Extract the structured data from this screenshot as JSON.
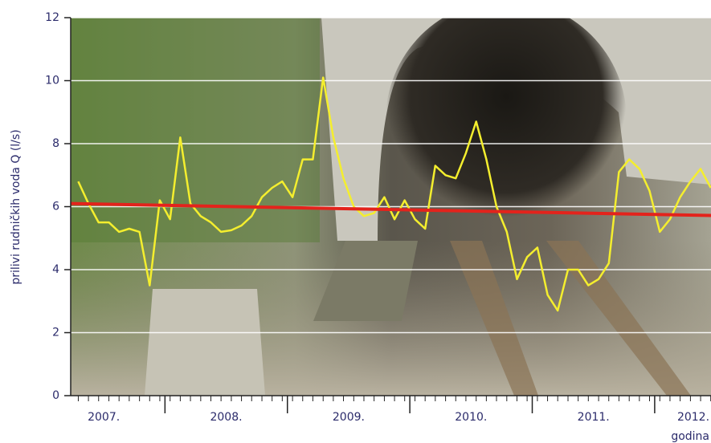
{
  "chart_data": {
    "type": "line",
    "y_label": "prilivi rudničkih voda Q (l/s)",
    "x_label": "godina",
    "xlim": [
      2007.23,
      2012.46
    ],
    "ylim": [
      0,
      12
    ],
    "yticks": [
      0,
      2,
      4,
      6,
      8,
      10,
      12
    ],
    "xticks": [
      {
        "value": 2007.5,
        "label": "2007."
      },
      {
        "value": 2008.5,
        "label": "2008."
      },
      {
        "value": 2009.5,
        "label": "2009."
      },
      {
        "value": 2010.5,
        "label": "2010."
      },
      {
        "value": 2011.5,
        "label": "2011."
      },
      {
        "value": 2012.5,
        "label": "2012."
      }
    ],
    "grid": true,
    "series": [
      {
        "color": "#f4ee2e",
        "x": [
          2007.292,
          2007.375,
          2007.458,
          2007.542,
          2007.625,
          2007.708,
          2007.792,
          2007.875,
          2007.958,
          2008.042,
          2008.125,
          2008.208,
          2008.292,
          2008.375,
          2008.458,
          2008.542,
          2008.625,
          2008.708,
          2008.792,
          2008.875,
          2008.958,
          2009.042,
          2009.125,
          2009.208,
          2009.292,
          2009.375,
          2009.458,
          2009.542,
          2009.625,
          2009.708,
          2009.792,
          2009.875,
          2009.958,
          2010.042,
          2010.125,
          2010.208,
          2010.292,
          2010.375,
          2010.458,
          2010.542,
          2010.625,
          2010.708,
          2010.792,
          2010.875,
          2010.958,
          2011.042,
          2011.125,
          2011.208,
          2011.292,
          2011.375,
          2011.458,
          2011.542,
          2011.625,
          2011.708,
          2011.792,
          2011.875,
          2011.958,
          2012.042,
          2012.125,
          2012.208,
          2012.292,
          2012.375,
          2012.458
        ],
        "values": [
          6.8,
          6.1,
          5.5,
          5.5,
          5.2,
          5.3,
          5.2,
          3.5,
          6.2,
          5.6,
          8.2,
          6.1,
          5.7,
          5.5,
          5.2,
          5.25,
          5.4,
          5.7,
          6.3,
          6.6,
          6.8,
          6.3,
          7.5,
          7.5,
          10.1,
          8.2,
          6.9,
          6.0,
          5.7,
          5.8,
          6.3,
          5.6,
          6.2,
          5.6,
          5.3,
          7.3,
          7.0,
          6.9,
          7.7,
          8.7,
          7.5,
          6.0,
          5.2,
          3.7,
          4.4,
          4.7,
          3.2,
          2.7,
          4.0,
          4.0,
          3.5,
          3.7,
          4.2,
          7.1,
          7.5,
          7.2,
          6.5,
          5.2,
          5.6,
          6.3,
          6.8,
          7.2,
          6.6
        ]
      },
      {
        "color": "#e3231c",
        "x": [
          2007.23,
          2012.46
        ],
        "values": [
          6.1,
          5.72
        ]
      }
    ]
  }
}
